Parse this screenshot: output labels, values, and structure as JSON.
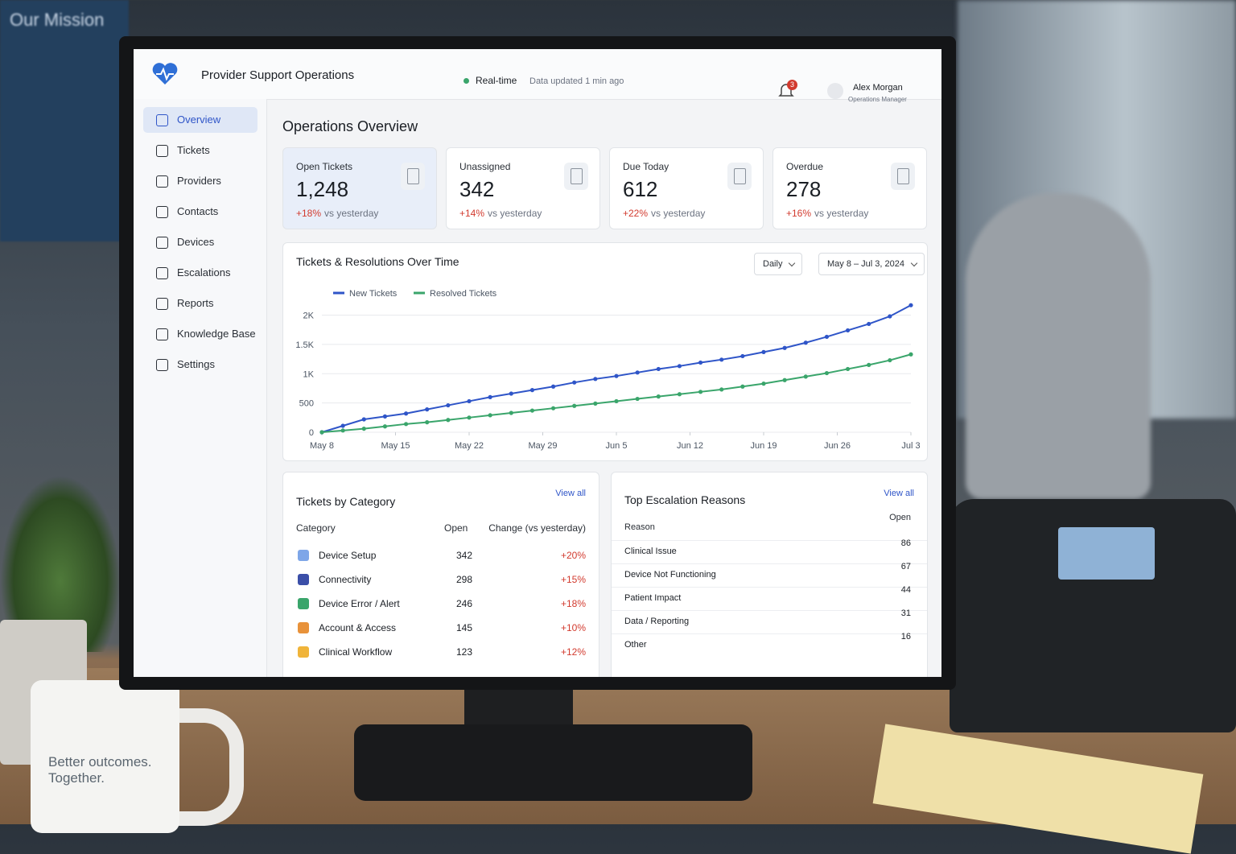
{
  "scene": {
    "wall_title": "Our Mission",
    "mug_text": "Better outcomes. Together."
  },
  "header": {
    "app_name": "Provider Support Operations",
    "status": "Real-time",
    "updated": "Data updated 1 min ago",
    "notifications": "3",
    "user_name": "Alex Morgan",
    "user_role": "Operations Manager"
  },
  "nav": [
    "Overview",
    "Tickets",
    "Providers",
    "Contacts",
    "Devices",
    "Escalations",
    "Reports",
    "Knowledge Base",
    "Settings"
  ],
  "page_title": "Operations Overview",
  "kpis": [
    {
      "label": "Open Tickets",
      "value": "1,248",
      "change": "+18%",
      "suffix": "vs yesterday"
    },
    {
      "label": "Unassigned",
      "value": "342",
      "change": "+14%",
      "suffix": "vs yesterday"
    },
    {
      "label": "Due Today",
      "value": "612",
      "change": "+22%",
      "suffix": "vs yesterday"
    },
    {
      "label": "Overdue",
      "value": "278",
      "change": "+16%",
      "suffix": "vs yesterday"
    }
  ],
  "chart_data": {
    "type": "line",
    "title": "Tickets & Resolutions Over Time",
    "interval": "Daily",
    "date_range": "May 8 – Jul 3, 2024",
    "x": [
      0,
      2,
      4,
      6,
      8,
      10,
      12,
      14,
      16,
      18,
      20,
      22,
      24,
      26,
      28,
      30,
      32,
      34,
      36,
      38,
      40,
      42,
      44,
      46,
      48,
      50,
      52,
      54,
      56
    ],
    "xlim": [
      0,
      56
    ],
    "xticks": [
      {
        "value": 0,
        "label": "May 8"
      },
      {
        "value": 7,
        "label": "May 15"
      },
      {
        "value": 14,
        "label": "May 22"
      },
      {
        "value": 21,
        "label": "May 29"
      },
      {
        "value": 28,
        "label": "Jun 5"
      },
      {
        "value": 35,
        "label": "Jun 12"
      },
      {
        "value": 42,
        "label": "Jun 19"
      },
      {
        "value": 49,
        "label": "Jun 26"
      },
      {
        "value": 56,
        "label": "Jul 3"
      }
    ],
    "ylim": [
      0,
      2200
    ],
    "yticks": [
      0,
      500,
      {
        "value": 1000,
        "label": "1K"
      },
      {
        "value": 1500,
        "label": "1.5K"
      },
      {
        "value": 2000,
        "label": "2K"
      }
    ],
    "grid": true,
    "series": [
      {
        "name": "New Tickets",
        "color": "#2f55c8",
        "values": [
          0,
          110,
          220,
          270,
          320,
          390,
          460,
          530,
          600,
          660,
          720,
          780,
          850,
          910,
          960,
          1020,
          1080,
          1130,
          1190,
          1240,
          1300,
          1370,
          1440,
          1530,
          1630,
          1740,
          1850,
          1980,
          2170
        ]
      },
      {
        "name": "Resolved Tickets",
        "color": "#3aa56b",
        "values": [
          0,
          30,
          60,
          100,
          140,
          170,
          210,
          250,
          290,
          330,
          370,
          410,
          450,
          490,
          530,
          570,
          610,
          650,
          690,
          730,
          780,
          830,
          890,
          950,
          1010,
          1080,
          1150,
          1230,
          1330
        ]
      }
    ]
  },
  "category_table": {
    "title": "Tickets by Category",
    "link": "View all",
    "columns": [
      "Category",
      "Open",
      "Change (vs yesterday)"
    ],
    "rows": [
      {
        "icon_color": "#7ea6e8",
        "cells": [
          "Device Setup",
          "342",
          "+20%"
        ]
      },
      {
        "icon_color": "#3b4fa8",
        "cells": [
          "Connectivity",
          "298",
          "+15%"
        ]
      },
      {
        "icon_color": "#3aa56b",
        "cells": [
          "Device Error / Alert",
          "246",
          "+18%"
        ]
      },
      {
        "icon_color": "#e8923a",
        "cells": [
          "Account & Access",
          "145",
          "+10%"
        ]
      },
      {
        "icon_color": "#f0b43a",
        "cells": [
          "Clinical Workflow",
          "123",
          "+12%"
        ]
      }
    ]
  },
  "escalation_table": {
    "title": "Top Escalation Reasons",
    "link": "View all",
    "columns": [
      "Reason",
      "Open"
    ],
    "rows": [
      [
        "Clinical Issue",
        "86"
      ],
      [
        "Device Not Functioning",
        "67"
      ],
      [
        "Patient Impact",
        "44"
      ],
      [
        "Data / Reporting",
        "31"
      ],
      [
        "Other",
        "16"
      ]
    ]
  }
}
